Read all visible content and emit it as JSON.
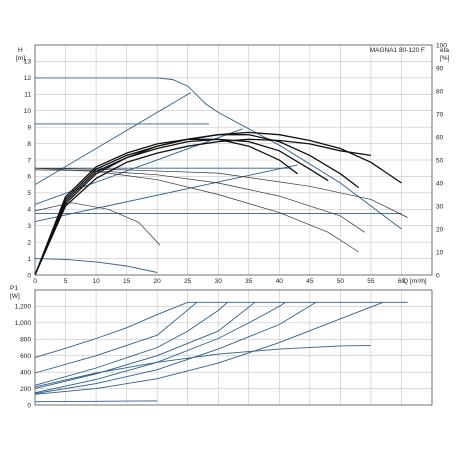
{
  "chart_data": [
    {
      "type": "line",
      "title": "MAGNA1 80-120 F",
      "ylabel": "H",
      "yunit": "[m]",
      "y2label": "eta",
      "y2unit": "[%]",
      "xlabel": "Q",
      "xunit": "[m³/h]",
      "xlim": [
        0,
        65
      ],
      "ylim": [
        0,
        14
      ],
      "y2lim": [
        0,
        100
      ],
      "x_ticks": [
        0,
        5,
        10,
        15,
        20,
        25,
        30,
        35,
        40,
        45,
        50,
        55,
        60
      ],
      "y_ticks": [
        0,
        1,
        2,
        3,
        4,
        5,
        6,
        7,
        8,
        9,
        10,
        11,
        12,
        13
      ],
      "y2_ticks": [
        0,
        10,
        20,
        30,
        40,
        50,
        60,
        70,
        80,
        90,
        100
      ],
      "grid": true,
      "series": [
        {
          "kind": "max-curve",
          "color": "#2f5f8a",
          "points": [
            [
              0,
              12
            ],
            [
              20,
              12
            ],
            [
              22.5,
              11.9
            ],
            [
              25,
              11.5
            ],
            [
              28,
              10.4
            ],
            [
              30,
              9.9
            ],
            [
              40,
              7.9
            ],
            [
              50,
              5.6
            ],
            [
              60,
              2.8
            ]
          ]
        },
        {
          "kind": "constant-pressure",
          "color": "#2f5f8a",
          "points": [
            [
              0,
              9.2
            ],
            [
              28.5,
              9.2
            ]
          ]
        },
        {
          "kind": "constant-pressure",
          "color": "#2f5f8a",
          "points": [
            [
              0,
              6.5
            ],
            [
              42,
              6.5
            ]
          ]
        },
        {
          "kind": "constant-pressure",
          "color": "#2f5f8a",
          "points": [
            [
              0,
              3.75
            ],
            [
              60,
              3.75
            ]
          ]
        },
        {
          "kind": "proportional-pressure",
          "color": "#2f5f8a",
          "points": [
            [
              0,
              5.5
            ],
            [
              25.5,
              11.1
            ]
          ]
        },
        {
          "kind": "proportional-pressure",
          "color": "#2f5f8a",
          "points": [
            [
              0,
              4.3
            ],
            [
              34,
              8.9
            ]
          ]
        },
        {
          "kind": "proportional-pressure",
          "color": "#2f5f8a",
          "points": [
            [
              0,
              3.25
            ],
            [
              43,
              6.7
            ]
          ]
        },
        {
          "kind": "min-curve",
          "color": "#2f5f8a",
          "points": [
            [
              0,
              1.0
            ],
            [
              5,
              0.95
            ],
            [
              10,
              0.8
            ],
            [
              15,
              0.55
            ],
            [
              20,
              0.15
            ]
          ]
        },
        {
          "kind": "speed-curve",
          "color": "#333333",
          "points": [
            [
              0,
              6.5
            ],
            [
              10,
              6.3
            ],
            [
              20,
              5.8
            ],
            [
              30,
              4.9
            ],
            [
              40,
              3.8
            ],
            [
              48,
              2.6
            ],
            [
              53,
              1.4
            ]
          ]
        },
        {
          "kind": "speed-curve",
          "color": "#333333",
          "points": [
            [
              0,
              6.4
            ],
            [
              10,
              6.35
            ],
            [
              20,
              6.1
            ],
            [
              30,
              5.6
            ],
            [
              40,
              4.8
            ],
            [
              50,
              3.6
            ],
            [
              54,
              2.6
            ]
          ]
        },
        {
          "kind": "speed-curve",
          "color": "#333333",
          "points": [
            [
              0,
              6.5
            ],
            [
              15,
              6.4
            ],
            [
              30,
              6.2
            ],
            [
              45,
              5.4
            ],
            [
              55,
              4.6
            ],
            [
              61,
              3.5
            ]
          ]
        },
        {
          "kind": "speed-curve",
          "color": "#333333",
          "points": [
            [
              0,
              3.9
            ],
            [
              6,
              4.4
            ],
            [
              12,
              4.0
            ],
            [
              17,
              3.2
            ],
            [
              20.5,
              1.8
            ]
          ]
        }
      ],
      "eta_series": [
        {
          "points": [
            [
              0,
              0
            ],
            [
              5,
              31
            ],
            [
              10,
              44
            ],
            [
              15,
              51
            ],
            [
              20,
              56
            ],
            [
              25,
              59
            ],
            [
              30,
              61
            ],
            [
              35,
              62
            ],
            [
              40,
              61
            ],
            [
              45,
              58.5
            ],
            [
              50,
              55
            ],
            [
              55,
              49
            ],
            [
              60,
              40
            ]
          ]
        },
        {
          "points": [
            [
              0,
              0
            ],
            [
              5,
              33
            ],
            [
              10,
              46
            ],
            [
              15,
              52
            ],
            [
              20,
              56
            ],
            [
              25,
              59
            ],
            [
              30,
              61
            ],
            [
              35,
              61
            ],
            [
              40,
              58
            ],
            [
              45,
              52
            ],
            [
              50,
              44
            ],
            [
              53,
              38
            ]
          ]
        },
        {
          "points": [
            [
              0,
              0
            ],
            [
              5,
              32
            ],
            [
              10,
              45
            ],
            [
              15,
              51
            ],
            [
              20,
              55
            ],
            [
              25,
              58
            ],
            [
              30,
              59
            ],
            [
              35,
              58
            ],
            [
              40,
              54
            ],
            [
              45,
              46
            ],
            [
              48,
              41
            ]
          ]
        },
        {
          "points": [
            [
              0,
              0
            ],
            [
              5,
              34
            ],
            [
              10,
              47
            ],
            [
              15,
              53
            ],
            [
              20,
              57
            ],
            [
              25,
              59
            ],
            [
              30,
              59
            ],
            [
              35,
              56
            ],
            [
              40,
              50
            ],
            [
              43,
              44
            ]
          ]
        },
        {
          "points": [
            [
              0,
              0
            ],
            [
              5,
              30
            ],
            [
              10,
              42
            ],
            [
              15,
              49
            ],
            [
              20,
              53
            ],
            [
              25,
              56
            ],
            [
              30,
              58
            ],
            [
              35,
              59
            ],
            [
              40,
              58.5
            ],
            [
              45,
              57
            ],
            [
              50,
              54
            ],
            [
              55,
              52
            ]
          ]
        }
      ]
    },
    {
      "type": "line",
      "ylabel": "P1",
      "yunit": "[W]",
      "xlim": [
        0,
        65
      ],
      "ylim": [
        0,
        1400
      ],
      "y_ticks": [
        0,
        200,
        400,
        600,
        800,
        1000,
        1200
      ],
      "y_tick_labels": [
        "0",
        "200",
        "400",
        "600",
        "800",
        "1,000",
        "1,200"
      ],
      "grid": true,
      "series": [
        {
          "kind": "power",
          "color": "#2f5f8a",
          "points": [
            [
              0,
              580
            ],
            [
              5,
              690
            ],
            [
              10,
              810
            ],
            [
              15,
              940
            ],
            [
              20,
              1100
            ],
            [
              25,
              1250
            ],
            [
              61,
              1250
            ]
          ]
        },
        {
          "kind": "power",
          "color": "#2f5f8a",
          "points": [
            [
              0,
              390
            ],
            [
              10,
              600
            ],
            [
              20,
              850
            ],
            [
              26.5,
              1250
            ]
          ]
        },
        {
          "kind": "power",
          "color": "#2f5f8a",
          "points": [
            [
              0,
              240
            ],
            [
              10,
              450
            ],
            [
              20,
              700
            ],
            [
              25,
              900
            ],
            [
              30,
              1150
            ],
            [
              31.5,
              1250
            ]
          ]
        },
        {
          "kind": "power",
          "color": "#2f5f8a",
          "points": [
            [
              0,
              200
            ],
            [
              10,
              380
            ],
            [
              20,
              600
            ],
            [
              30,
              900
            ],
            [
              36,
              1250
            ]
          ]
        },
        {
          "kind": "power",
          "color": "#2f5f8a",
          "points": [
            [
              0,
              150
            ],
            [
              10,
              310
            ],
            [
              20,
              520
            ],
            [
              30,
              810
            ],
            [
              35,
              1000
            ],
            [
              40,
              1200
            ],
            [
              41,
              1250
            ]
          ]
        },
        {
          "kind": "power",
          "color": "#2f5f8a",
          "points": [
            [
              0,
              140
            ],
            [
              10,
              260
            ],
            [
              20,
              430
            ],
            [
              30,
              680
            ],
            [
              40,
              980
            ],
            [
              46,
              1250
            ]
          ]
        },
        {
          "kind": "power",
          "color": "#2f5f8a",
          "points": [
            [
              0,
              130
            ],
            [
              10,
              200
            ],
            [
              20,
              320
            ],
            [
              30,
              510
            ],
            [
              40,
              760
            ],
            [
              50,
              1050
            ],
            [
              57,
              1250
            ]
          ]
        },
        {
          "kind": "power",
          "color": "#2f5f8a",
          "points": [
            [
              0,
              220
            ],
            [
              10,
              390
            ],
            [
              20,
              520
            ],
            [
              30,
              620
            ],
            [
              40,
              680
            ],
            [
              50,
              720
            ],
            [
              55,
              725
            ]
          ]
        },
        {
          "kind": "power",
          "color": "#2f5f8a",
          "points": [
            [
              0,
              40
            ],
            [
              10,
              45
            ],
            [
              20,
              50
            ]
          ]
        }
      ]
    }
  ]
}
